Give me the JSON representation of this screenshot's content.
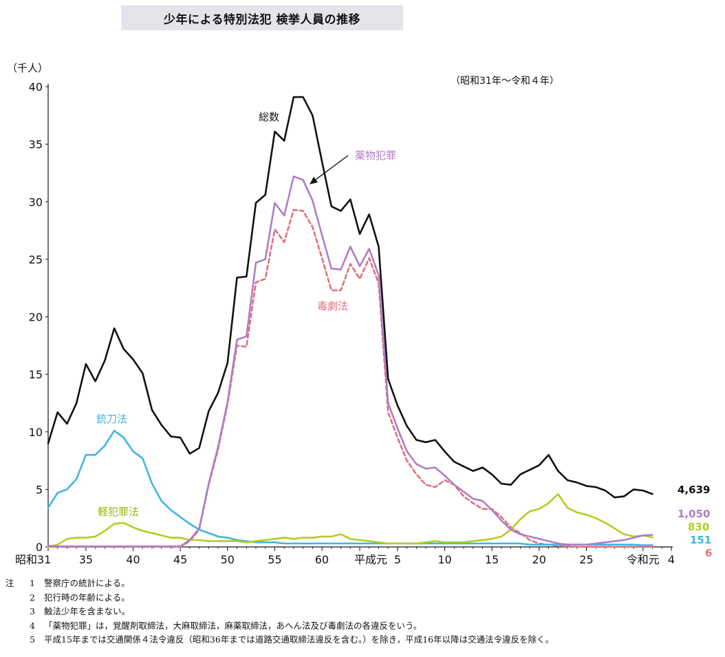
{
  "chart_data": {
    "type": "line",
    "title": "少年による特別法犯 検挙人員の推移",
    "period": "（昭和31年～令和４年）",
    "y_unit": "（千人）",
    "ylim": [
      0,
      40
    ],
    "y_ticks": [
      "0",
      "5",
      "10",
      "15",
      "20",
      "25",
      "30",
      "35",
      "40"
    ],
    "x_start": 1956,
    "x_end": 2022,
    "x_ticks": [
      {
        "year": 1956,
        "label": "昭和31"
      },
      {
        "year": 1960,
        "label": "35"
      },
      {
        "year": 1965,
        "label": "40"
      },
      {
        "year": 1970,
        "label": "45"
      },
      {
        "year": 1975,
        "label": "50"
      },
      {
        "year": 1980,
        "label": "55"
      },
      {
        "year": 1985,
        "label": "60"
      },
      {
        "year": 1989,
        "label": "平成元"
      },
      {
        "year": 1993,
        "label": "5"
      },
      {
        "year": 1998,
        "label": "10"
      },
      {
        "year": 2003,
        "label": "15"
      },
      {
        "year": 2008,
        "label": "20"
      },
      {
        "year": 2013,
        "label": "25"
      },
      {
        "year": 2019,
        "label": "令和元"
      },
      {
        "year": 2022,
        "label": "4"
      }
    ],
    "grid": false,
    "series": [
      {
        "key": "total",
        "name": "総数",
        "color": "#111111",
        "dashed": false,
        "end_label": "4,639",
        "values": [
          9.0,
          11.7,
          10.7,
          12.5,
          15.9,
          14.4,
          16.2,
          19.0,
          17.2,
          16.3,
          15.1,
          11.9,
          10.6,
          9.6,
          9.5,
          8.1,
          8.6,
          11.8,
          13.4,
          16.0,
          23.4,
          23.5,
          29.9,
          30.6,
          36.1,
          35.3,
          39.1,
          39.1,
          37.5,
          33.5,
          29.6,
          29.2,
          30.2,
          27.2,
          28.9,
          26.1,
          14.6,
          12.3,
          10.5,
          9.3,
          9.1,
          9.3,
          8.3,
          7.4,
          7.0,
          6.6,
          6.9,
          6.3,
          5.5,
          5.4,
          6.3,
          6.7,
          7.1,
          8.0,
          6.6,
          5.8,
          5.6,
          5.3,
          5.2,
          4.9,
          4.3,
          4.4,
          5.0,
          4.9,
          4.6
        ]
      },
      {
        "key": "drug",
        "name": "薬物犯罪",
        "color": "#b07cc6",
        "dashed": false,
        "end_label": "1,050",
        "values": [
          0.1,
          0.05,
          0.05,
          0.05,
          0.05,
          0.05,
          0.05,
          0.05,
          0.05,
          0.05,
          0.05,
          0.05,
          0.05,
          0.05,
          0.05,
          0.6,
          1.6,
          5.5,
          8.7,
          12.6,
          18.0,
          18.3,
          24.7,
          25.0,
          29.9,
          28.8,
          32.2,
          31.9,
          30.1,
          27.1,
          24.2,
          24.1,
          26.1,
          24.4,
          25.9,
          23.6,
          12.5,
          10.3,
          8.3,
          7.2,
          6.8,
          6.9,
          6.2,
          5.4,
          4.8,
          4.2,
          4.0,
          3.2,
          2.3,
          1.5,
          1.1,
          0.9,
          0.7,
          0.5,
          0.3,
          0.2,
          0.2,
          0.2,
          0.3,
          0.4,
          0.5,
          0.6,
          0.8,
          1.0,
          1.05
        ]
      },
      {
        "key": "toxic",
        "name": "毒劇法",
        "color": "#e0707a",
        "dashed": true,
        "end_label": "6",
        "values": [
          0.0,
          0.0,
          0.0,
          0.0,
          0.0,
          0.0,
          0.0,
          0.0,
          0.0,
          0.0,
          0.0,
          0.0,
          0.0,
          0.0,
          0.0,
          0.5,
          1.5,
          5.4,
          8.5,
          12.4,
          17.5,
          17.4,
          23.0,
          23.3,
          27.6,
          26.5,
          29.3,
          29.2,
          27.8,
          25.1,
          22.3,
          22.3,
          24.6,
          23.3,
          25.1,
          22.9,
          11.7,
          9.5,
          7.5,
          6.3,
          5.4,
          5.2,
          5.8,
          5.4,
          4.4,
          3.8,
          3.3,
          3.3,
          2.6,
          1.7,
          1.2,
          0.6,
          0.3,
          0.2,
          0.1,
          0.05,
          0.02,
          0.01,
          0.01,
          0.01,
          0.01,
          0.01,
          0.01,
          0.01,
          0.006
        ]
      },
      {
        "key": "sword",
        "name": "銃刀法",
        "color": "#3fb4e5",
        "dashed": false,
        "end_label": "151",
        "values": [
          3.4,
          4.7,
          5.0,
          5.9,
          8.0,
          8.0,
          8.8,
          10.1,
          9.5,
          8.3,
          7.7,
          5.5,
          4.0,
          3.2,
          2.6,
          2.0,
          1.5,
          1.2,
          0.9,
          0.8,
          0.6,
          0.5,
          0.4,
          0.4,
          0.4,
          0.3,
          0.3,
          0.3,
          0.3,
          0.3,
          0.3,
          0.3,
          0.3,
          0.3,
          0.3,
          0.3,
          0.3,
          0.3,
          0.3,
          0.3,
          0.3,
          0.3,
          0.3,
          0.3,
          0.3,
          0.3,
          0.3,
          0.3,
          0.3,
          0.3,
          0.3,
          0.2,
          0.2,
          0.2,
          0.2,
          0.2,
          0.2,
          0.2,
          0.2,
          0.2,
          0.2,
          0.2,
          0.2,
          0.15,
          0.151
        ]
      },
      {
        "key": "minor",
        "name": "軽犯罪法",
        "color": "#b5cc1f",
        "dashed": false,
        "end_label": "830",
        "values": [
          0.0,
          0.2,
          0.7,
          0.8,
          0.8,
          0.9,
          1.4,
          2.0,
          2.1,
          1.7,
          1.4,
          1.2,
          1.0,
          0.8,
          0.8,
          0.6,
          0.6,
          0.5,
          0.5,
          0.5,
          0.5,
          0.4,
          0.5,
          0.6,
          0.7,
          0.8,
          0.7,
          0.8,
          0.8,
          0.9,
          0.9,
          1.1,
          0.7,
          0.6,
          0.5,
          0.4,
          0.3,
          0.3,
          0.3,
          0.3,
          0.4,
          0.5,
          0.4,
          0.4,
          0.4,
          0.5,
          0.6,
          0.7,
          0.9,
          1.5,
          2.4,
          3.1,
          3.3,
          3.8,
          4.6,
          3.4,
          3.0,
          2.8,
          2.5,
          2.1,
          1.6,
          1.1,
          0.9,
          1.0,
          0.83
        ]
      }
    ],
    "annotations": [
      {
        "series": "total",
        "text": "総数"
      },
      {
        "series": "drug",
        "text": "薬物犯罪"
      },
      {
        "series": "toxic",
        "text": "毒劇法"
      },
      {
        "series": "sword",
        "text": "銃刀法"
      },
      {
        "series": "minor",
        "text": "軽犯罪法"
      }
    ]
  },
  "notes": {
    "heading": "注",
    "items": [
      {
        "num": "1",
        "text": "警察庁の統計による。"
      },
      {
        "num": "2",
        "text": "犯行時の年齢による。"
      },
      {
        "num": "3",
        "text": "触法少年を含まない。"
      },
      {
        "num": "4",
        "text": "「薬物犯罪」は，覚醒剤取締法，大麻取締法，麻薬取締法，あへん法及び毒劇法の各違反をいう。"
      },
      {
        "num": "5",
        "text": "平成15年までは交通関係４法令違反（昭和36年までは道路交通取締法違反を含む。）を除き，平成16年以降は交通法令違反を除く。"
      }
    ]
  }
}
